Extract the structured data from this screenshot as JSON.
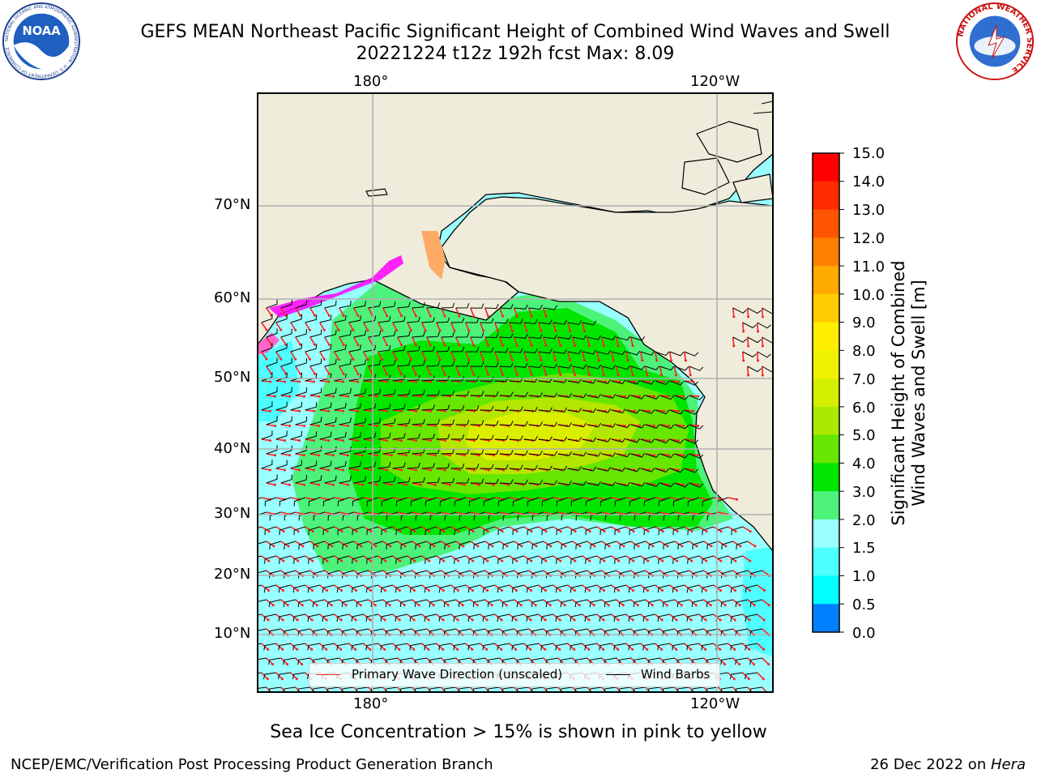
{
  "title": {
    "line1": "GEFS MEAN Northeast Pacific Significant Height of Combined Wind Waves and Swell",
    "line2": "20221224 t12z 192h fcst   Max: 8.09"
  },
  "map": {
    "top_lon_labels": [
      "180°",
      "120°W"
    ],
    "bottom_lon_labels": [
      "180°",
      "120°W"
    ],
    "lat_labels": [
      "70°N",
      "60°N",
      "50°N",
      "40°N",
      "30°N",
      "20°N",
      "10°N"
    ],
    "land_color": "#efecdc",
    "ocean_colors": {
      "range_1_5_2_0": "#00ffff",
      "range_2_0_3_0": "#99ffff",
      "range_3_0_4_0": "#4cf27a",
      "range_4_0_5_0": "#00e600",
      "range_5_0_6_0": "#66e600",
      "range_6_0_7_0": "#b3e600",
      "range_7_0_8_0": "#dcee00"
    },
    "sea_ice_colors": [
      "#ff00ff",
      "#ff66cc",
      "#ffaa66",
      "#ffdd00"
    ],
    "primary_wave_arrow_color": "#ff2020",
    "wind_barb_color": "#000000"
  },
  "legend": {
    "wave_label": "Primary Wave Direction (unscaled)",
    "barb_label": "Wind Barbs"
  },
  "colorbar": {
    "label_line1": "Significant Height of Combined",
    "label_line2": "Wind Waves and Swell [m]",
    "ticks": [
      "15.0",
      "14.0",
      "13.0",
      "12.0",
      "11.0",
      "10.0",
      "9.0",
      "8.0",
      "7.0",
      "6.0",
      "5.0",
      "4.0",
      "3.0",
      "2.0",
      "1.5",
      "1.0",
      "0.5",
      "0.0"
    ],
    "colors": [
      "#ff0000",
      "#ff2a00",
      "#ff5500",
      "#ff8000",
      "#ffaa00",
      "#ffcc00",
      "#ffee00",
      "#eef200",
      "#d4ee00",
      "#aaea00",
      "#66e600",
      "#00e600",
      "#4cf27a",
      "#99ffff",
      "#4dffff",
      "#00ffff",
      "#0080ff",
      "#0000ff"
    ]
  },
  "logos": {
    "noaa_text": "NOAA",
    "noaa_ring_text": "NATIONAL OCEANIC AND ATMOSPHERIC ADMINISTRATION · U.S. DEPARTMENT OF COMMERCE",
    "nws_ring_text": "NATIONAL WEATHER SERVICE"
  },
  "note": "Sea Ice Concentration > 15% is shown in pink to yellow",
  "footer": {
    "left": "NCEP/EMC/Verification Post Processing Product Generation Branch",
    "right_prefix": "26 Dec 2022 on ",
    "right_host": "Hera"
  }
}
